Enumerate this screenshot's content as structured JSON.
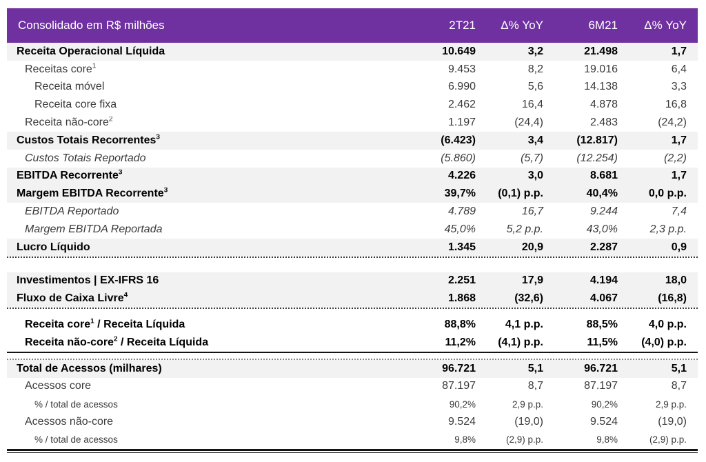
{
  "table": {
    "header": {
      "title": "Consolidado em R$ milhões",
      "columns": [
        "2T21",
        "Δ% YoY",
        "6M21",
        "Δ% YoY"
      ]
    },
    "colors": {
      "header_bg": "#7031A0",
      "header_text": "#FFFFFF",
      "shade_row_bg": "#F2F2F2"
    },
    "sections": [
      {
        "divider_after": "section-rule",
        "rows": [
          {
            "label": "Receita Operacional Líquida",
            "style": "bold",
            "shade": true,
            "indent": 0,
            "values": [
              "10.649",
              "3,2",
              "21.498",
              "1,7"
            ]
          },
          {
            "label": "Receitas core",
            "sup": "1",
            "style": "normal",
            "shade": false,
            "indent": 1,
            "values": [
              "9.453",
              "8,2",
              "19.016",
              "6,4"
            ]
          },
          {
            "label": "Receita móvel",
            "style": "normal",
            "shade": false,
            "indent": 2,
            "values": [
              "6.990",
              "5,6",
              "14.138",
              "3,3"
            ]
          },
          {
            "label": "Receita core fixa",
            "style": "normal",
            "shade": false,
            "indent": 2,
            "values": [
              "2.462",
              "16,4",
              "4.878",
              "16,8"
            ]
          },
          {
            "label": "Receita não-core",
            "sup": "2",
            "style": "normal",
            "shade": false,
            "indent": 1,
            "values": [
              "1.197",
              "(24,4)",
              "2.483",
              "(24,2)"
            ]
          },
          {
            "label": "Custos Totais Recorrentes",
            "sup": "3",
            "style": "bold",
            "shade": true,
            "indent": 0,
            "values": [
              "(6.423)",
              "3,4",
              "(12.817)",
              "1,7"
            ]
          },
          {
            "label": "Custos Totais Reportado",
            "style": "italic",
            "shade": false,
            "indent": 1,
            "values": [
              "(5.860)",
              "(5,7)",
              "(12.254)",
              "(2,2)"
            ]
          },
          {
            "label": "EBITDA Recorrente",
            "sup": "3",
            "style": "bold",
            "shade": true,
            "indent": 0,
            "values": [
              "4.226",
              "3,0",
              "8.681",
              "1,7"
            ]
          },
          {
            "label": "Margem EBITDA Recorrente",
            "sup": "3",
            "style": "bold",
            "shade": true,
            "indent": 0,
            "values": [
              "39,7%",
              "(0,1) p.p.",
              "40,4%",
              "0,0 p.p."
            ]
          },
          {
            "label": "EBITDA Reportado",
            "style": "italic",
            "shade": false,
            "indent": 1,
            "values": [
              "4.789",
              "16,7",
              "9.244",
              "7,4"
            ]
          },
          {
            "label": "Margem EBITDA Reportada",
            "style": "italic",
            "shade": false,
            "indent": 1,
            "values": [
              "45,0%",
              "5,2 p.p.",
              "43,0%",
              "2,3 p.p."
            ]
          },
          {
            "label": "Lucro Líquido",
            "style": "bold",
            "shade": true,
            "indent": 0,
            "values": [
              "1.345",
              "20,9",
              "2.287",
              "0,9"
            ]
          }
        ]
      },
      {
        "divider_after": "section-rule-2",
        "rows": [
          {
            "label": "Investimentos | EX-IFRS 16",
            "style": "bold",
            "shade": true,
            "indent": 0,
            "values": [
              "2.251",
              "17,9",
              "4.194",
              "18,0"
            ]
          },
          {
            "label": "Fluxo de Caixa Livre",
            "sup": "4",
            "style": "bold",
            "shade": true,
            "indent": 0,
            "values": [
              "1.868",
              "(32,6)",
              "4.067",
              "(16,8)"
            ]
          }
        ]
      },
      {
        "divider_after": "emphasis-rule",
        "rows": [
          {
            "label": "Receita core",
            "sup": "1",
            "label2": " / Receita Líquida",
            "style": "bold",
            "shade": false,
            "indent": 1,
            "values": [
              "88,8%",
              "4,1 p.p.",
              "88,5%",
              "4,0 p.p."
            ]
          },
          {
            "label": "Receita não-core",
            "sup": "2",
            "label2": " / Receita Líquida",
            "style": "bold",
            "shade": false,
            "indent": 1,
            "values": [
              "11,2%",
              "(4,1) p.p.",
              "11,5%",
              "(4,0) p.p."
            ]
          }
        ]
      },
      {
        "divider_after": "closing-rule",
        "rows": [
          {
            "label": "Total de Acessos (milhares)",
            "style": "bold",
            "shade": true,
            "indent": 0,
            "values": [
              "96.721",
              "5,1",
              "96.721",
              "5,1"
            ]
          },
          {
            "label": "Acessos core",
            "style": "normal",
            "shade": false,
            "indent": 1,
            "values": [
              "87.197",
              "8,7",
              "87.197",
              "8,7"
            ]
          },
          {
            "label": "% / total de acessos",
            "style": "normal",
            "shade": false,
            "indent": 2,
            "small": true,
            "values": [
              "90,2%",
              "2,9 p.p.",
              "90,2%",
              "2,9 p.p."
            ]
          },
          {
            "label": "Acessos não-core",
            "style": "normal",
            "shade": false,
            "indent": 1,
            "values": [
              "9.524",
              "(19,0)",
              "9.524",
              "(19,0)"
            ]
          },
          {
            "label": "% / total de acessos",
            "style": "normal",
            "shade": false,
            "indent": 2,
            "small": true,
            "values": [
              "9,8%",
              "(2,9) p.p.",
              "9,8%",
              "(2,9) p.p."
            ]
          }
        ]
      }
    ]
  }
}
